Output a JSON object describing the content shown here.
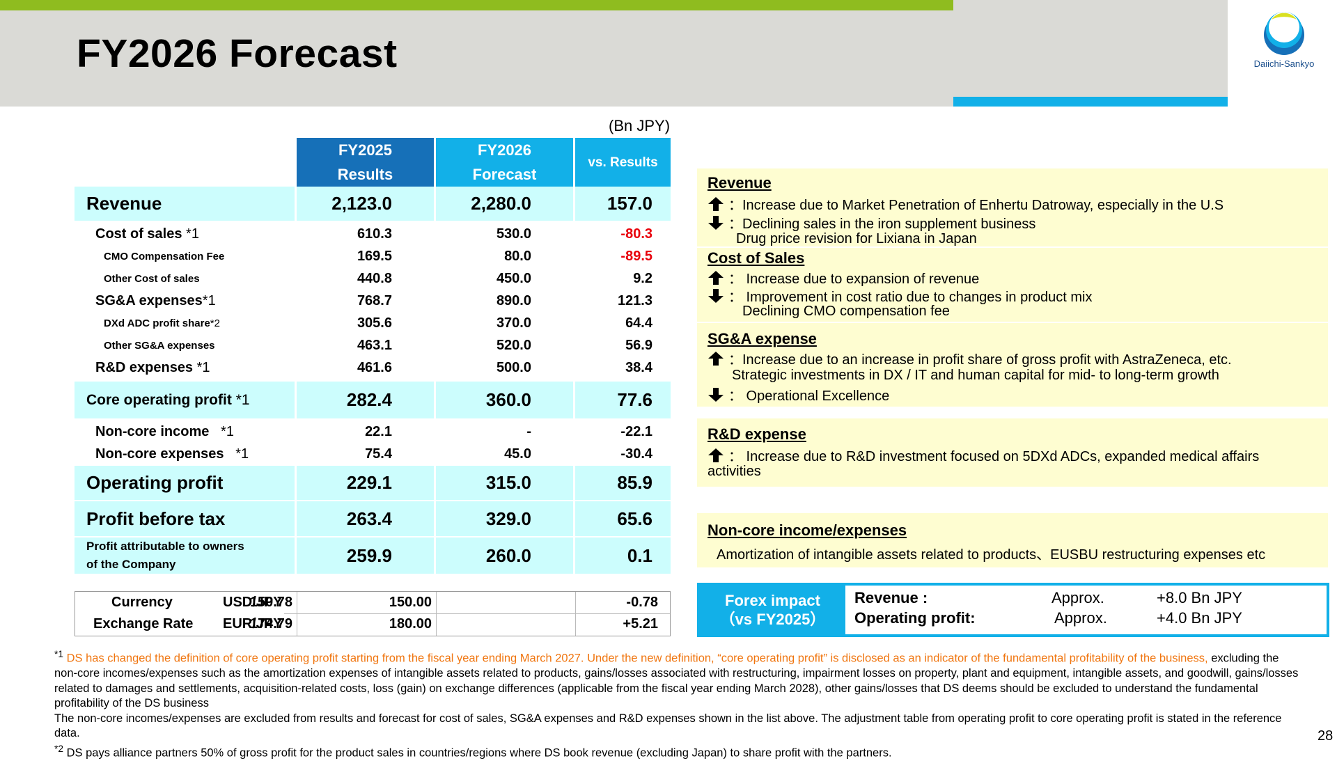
{
  "title": "FY2026 Forecast",
  "logo_text": "Daiichi-Sankyo",
  "unit": "(Bn JPY)",
  "table": {
    "headers": [
      {
        "line1": "FY2025",
        "line2": "Results"
      },
      {
        "line1": "FY2026",
        "line2": "Forecast"
      },
      {
        "line1": "vs. Results",
        "line2": ""
      }
    ],
    "rows": [
      {
        "label": "Revenue",
        "note": "",
        "v1": "2,123.0",
        "v2": "2,280.0",
        "v3": "157.0"
      },
      {
        "label": "Cost of sales",
        "note": "*1",
        "v1": "610.3",
        "v2": "530.0",
        "v3": "-80.3"
      },
      {
        "label": "CMO Compensation Fee",
        "note": "",
        "v1": "169.5",
        "v2": "80.0",
        "v3": "-89.5"
      },
      {
        "label": "Other Cost of sales",
        "note": "",
        "v1": "440.8",
        "v2": "450.0",
        "v3": "9.2"
      },
      {
        "label": "SG&A expenses",
        "note": "*1",
        "v1": "768.7",
        "v2": "890.0",
        "v3": "121.3"
      },
      {
        "label": "DXd ADC profit share",
        "note": "*2",
        "v1": "305.6",
        "v2": "370.0",
        "v3": "64.4"
      },
      {
        "label": "Other SG&A expenses",
        "note": "",
        "v1": "463.1",
        "v2": "520.0",
        "v3": "56.9"
      },
      {
        "label": "R&D expenses",
        "note": "*1",
        "v1": "461.6",
        "v2": "500.0",
        "v3": "38.4"
      },
      {
        "label": "Core operating profit",
        "note": "*1",
        "v1": "282.4",
        "v2": "360.0",
        "v3": "77.6"
      },
      {
        "label": "Non-core income",
        "note": "*1",
        "v1": "22.1",
        "v2": "-",
        "v3": "-22.1"
      },
      {
        "label": "Non-core expenses",
        "note": "*1",
        "v1": "75.4",
        "v2": "45.0",
        "v3": "-30.4"
      },
      {
        "label": "Operating profit",
        "note": "",
        "v1": "229.1",
        "v2": "315.0",
        "v3": "85.9"
      },
      {
        "label": "Profit before tax",
        "note": "",
        "v1": "263.4",
        "v2": "329.0",
        "v3": "65.6"
      },
      {
        "label": "Profit attributable to owners",
        "label2": "of the Company",
        "note": "",
        "v1": "259.9",
        "v2": "260.0",
        "v3": "0.1"
      }
    ]
  },
  "currency": {
    "label1": "Currency",
    "label2": "Exchange Rate",
    "rows": [
      {
        "pair": "USD/JPY",
        "v1": "150.78",
        "v2": "150.00",
        "v3": "-0.78"
      },
      {
        "pair": "EUR/JPY",
        "v1": "174.79",
        "v2": "180.00",
        "v3": "+5.21"
      }
    ]
  },
  "boxes": {
    "revenue": {
      "title": "Revenue",
      "up": "：Increase due to Market Penetration of Enhertu Datroway, especially in the U.S",
      "down": "：Declining sales in the iron supplement business",
      "down2": "Drug price revision for Lixiana in Japan"
    },
    "cost": {
      "title": "Cost of Sales",
      "up": "：  Increase due to expansion of revenue",
      "down": "：  Improvement in cost ratio due to changes in product mix",
      "down2": "Declining CMO compensation fee"
    },
    "sga": {
      "title": "SG&A expense",
      "up": "：Increase due to an increase in profit share of gross profit with AstraZeneca, etc.",
      "up2": "Strategic investments in DX / IT and human capital for mid- to long-term growth",
      "down": "：  Operational Excellence"
    },
    "rd": {
      "title": "R&D expense",
      "up": "：  Increase due to R&D investment focused on 5DXd ADCs, expanded medical affairs",
      "up2": "activities"
    },
    "noncore": {
      "title": "Non-core income/expenses",
      "line": "Amortization of intangible assets related to products、EUSBU restructuring expenses etc"
    }
  },
  "forex": {
    "label1": "Forex impact",
    "label2": "（vs FY2025）",
    "rows": [
      {
        "name": "Revenue :",
        "approx": "Approx.",
        "value": "+8.0 Bn JPY"
      },
      {
        "name": "Operating profit:",
        "approx": "Approx.",
        "value": "+4.0 Bn JPY"
      }
    ]
  },
  "footnotes": {
    "f1_mark": "*1",
    "f1_orange": "DS has changed the definition of core operating profit starting from the fiscal year ending March 2027. Under the new definition, “core operating profit” is disclosed as an indicator of the fundamental profitability of the business,",
    "f1_rest": " excluding the non-core incomes/expenses such as the amortization expenses of intangible assets related to products, gains/losses associated with restructuring, impairment losses on property, plant and equipment, intangible assets, and goodwill, gains/losses related to damages and settlements, acquisition-related costs, loss (gain) on exchange differences (applicable from the fiscal year ending March 2028), other gains/losses that DS deems should be excluded to understand the fundamental profitability of the DS business",
    "f1_line2": "The non-core incomes/expenses are excluded from results and forecast for cost of sales, SG&A expenses and R&D expenses shown in the list above. The adjustment table from operating profit to core operating profit is stated in the reference data.",
    "f2_mark": "*2",
    "f2_text": "DS pays alliance partners 50% of gross profit for the product sales in countries/regions where DS book revenue (excluding Japan) to share profit with the partners."
  },
  "page_number": "28",
  "colors": {
    "green": "#8fbc1f",
    "blue": "#12b0e8",
    "dark_blue": "#1670b8",
    "highlight": "#ccfdfd",
    "box_yellow": "#fefdd1",
    "negative": "#e8000b",
    "footnote_orange": "#f0750f"
  }
}
